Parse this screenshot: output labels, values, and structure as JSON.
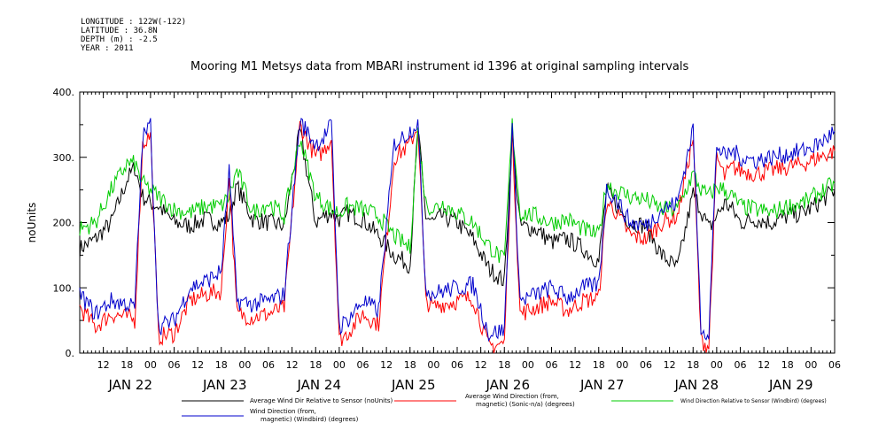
{
  "header": {
    "longitude": "LONGITUDE : 122W(-122)",
    "latitude": "LATITUDE : 36.8N",
    "depth": "DEPTH (m) : -2.5",
    "year": "YEAR : 2011"
  },
  "chart_data": {
    "type": "line",
    "title": "Mooring M1 Metsys data from MBARI instrument id 1396 at original sampling intervals",
    "ylabel": "noUnits",
    "xlabel": "",
    "ylim": [
      0,
      400
    ],
    "yticks": [
      "0.",
      "100.",
      "200.",
      "300.",
      "400."
    ],
    "xlim_hours": [
      -12,
      180
    ],
    "x_hour_ticks": [
      "12",
      "18",
      "00",
      "06",
      "12",
      "18",
      "00",
      "06",
      "12",
      "18",
      "00",
      "06",
      "12",
      "18",
      "00",
      "06",
      "12",
      "18",
      "00",
      "06",
      "12",
      "18",
      "00",
      "06",
      "12",
      "18",
      "00",
      "06",
      "12",
      "18",
      "00",
      "06"
    ],
    "x_day_labels": [
      "JAN 22",
      "JAN 23",
      "JAN 24",
      "JAN 25",
      "JAN 26",
      "JAN 27",
      "JAN 28",
      "JAN 29"
    ],
    "x_hours": [
      -12,
      -8,
      -4,
      0,
      2,
      4,
      6,
      8,
      12,
      16,
      20,
      24,
      26,
      28,
      32,
      36,
      40,
      44,
      48,
      50,
      52,
      54,
      56,
      60,
      64,
      68,
      72,
      74,
      76,
      78,
      80,
      84,
      88,
      92,
      96,
      98,
      100,
      104,
      108,
      112,
      116,
      120,
      122,
      124,
      128,
      132,
      136,
      140,
      144,
      146,
      148,
      150,
      152,
      154,
      156,
      160,
      164,
      168,
      172,
      176,
      180
    ],
    "series": [
      {
        "name": "Average Wind Dir Relative to Sensor (noUnits)",
        "color": "#000000",
        "values": [
          160,
          175,
          200,
          265,
          285,
          240,
          230,
          225,
          200,
          195,
          205,
          200,
          210,
          255,
          205,
          200,
          195,
          340,
          200,
          210,
          215,
          205,
          215,
          205,
          180,
          150,
          135,
          345,
          210,
          200,
          210,
          200,
          175,
          130,
          110,
          330,
          195,
          190,
          170,
          175,
          160,
          140,
          250,
          230,
          200,
          195,
          150,
          130,
          245,
          220,
          190,
          210,
          230,
          220,
          200,
          205,
          200,
          210,
          215,
          230,
          250
        ]
      },
      {
        "name": "Average Wind Direction (from, magnetic) (Sonic-n/a) (degrees)",
        "color": "#ff0000",
        "values": [
          70,
          40,
          60,
          55,
          50,
          320,
          335,
          25,
          30,
          80,
          90,
          95,
          270,
          60,
          55,
          60,
          70,
          350,
          300,
          310,
          330,
          20,
          30,
          60,
          45,
          300,
          320,
          350,
          80,
          70,
          75,
          80,
          85,
          10,
          15,
          340,
          60,
          70,
          80,
          65,
          80,
          85,
          230,
          220,
          180,
          175,
          200,
          210,
          330,
          20,
          10,
          300,
          270,
          285,
          280,
          275,
          280,
          285,
          290,
          300,
          310
        ]
      },
      {
        "name": "Wind Direction Relative to Sensor (Windbird) (degrees)",
        "color": "#00cc00",
        "values": [
          190,
          200,
          250,
          290,
          290,
          260,
          250,
          240,
          220,
          215,
          225,
          225,
          240,
          280,
          215,
          230,
          210,
          330,
          240,
          230,
          220,
          215,
          225,
          220,
          210,
          180,
          160,
          340,
          230,
          220,
          230,
          215,
          200,
          165,
          140,
          350,
          215,
          210,
          200,
          205,
          190,
          180,
          260,
          250,
          240,
          235,
          220,
          220,
          275,
          250,
          240,
          255,
          250,
          240,
          225,
          220,
          215,
          225,
          230,
          245,
          260
        ]
      },
      {
        "name": "Wind Direction (from, magnetic) (Windbird) (degrees)",
        "color": "#0000cc",
        "values": [
          90,
          60,
          80,
          75,
          70,
          330,
          350,
          40,
          50,
          100,
          110,
          125,
          280,
          80,
          75,
          80,
          90,
          355,
          320,
          330,
          350,
          40,
          50,
          80,
          65,
          320,
          340,
          355,
          100,
          90,
          95,
          100,
          105,
          30,
          35,
          350,
          80,
          90,
          100,
          85,
          100,
          105,
          250,
          240,
          200,
          195,
          220,
          230,
          345,
          40,
          30,
          320,
          300,
          310,
          300,
          295,
          300,
          305,
          310,
          320,
          340
        ]
      }
    ],
    "legend": [
      {
        "label": "Average Wind Dir Relative to Sensor (noUnits)",
        "color": "#000000"
      },
      {
        "label": "Average Wind Direction (from,",
        "label2": "magnetic) (Sonic-n/a) (degrees)",
        "color": "#ff0000"
      },
      {
        "label": "Wind Direction Relative to Sensor (Windbird) (degrees)",
        "color": "#00cc00"
      },
      {
        "label": "Wind Direction (from,",
        "label2": "magnetic) (Windbird) (degrees)",
        "color": "#0000cc"
      }
    ],
    "grid": false
  }
}
